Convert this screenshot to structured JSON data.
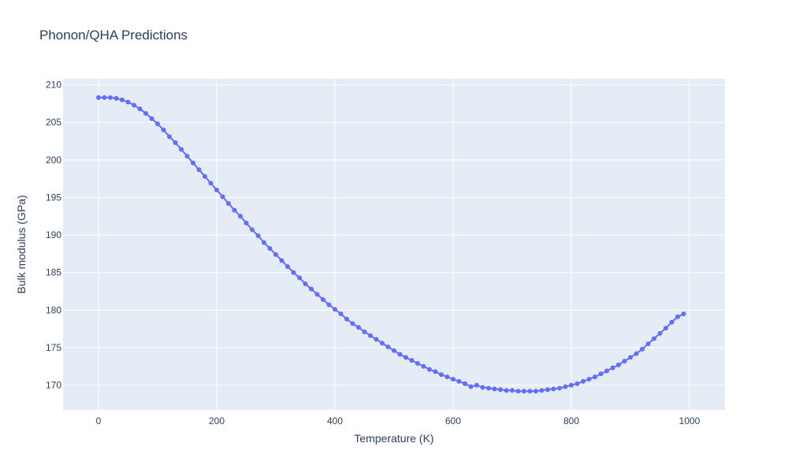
{
  "colors": {
    "plot_background": "#e5ecf6",
    "grid": "#ffffff",
    "series": "#636efa",
    "text": "#2a3f5f"
  },
  "chart_data": {
    "type": "line",
    "mode": "lines+markers",
    "title": "Phonon/QHA Predictions",
    "xlabel": "Temperature (K)",
    "ylabel": "Bulk modulus (GPa)",
    "xlim": [
      -60,
      1060
    ],
    "ylim": [
      166.7,
      210.8
    ],
    "xticks": [
      0,
      200,
      400,
      600,
      800,
      1000
    ],
    "yticks": [
      170,
      175,
      180,
      185,
      190,
      195,
      200,
      205,
      210
    ],
    "grid": true,
    "legend": "none",
    "series": [
      {
        "x": [
          0,
          10,
          20,
          30,
          40,
          50,
          60,
          70,
          80,
          90,
          100,
          110,
          120,
          130,
          140,
          150,
          160,
          170,
          180,
          190,
          200,
          210,
          220,
          230,
          240,
          250,
          260,
          270,
          280,
          290,
          300,
          310,
          320,
          330,
          340,
          350,
          360,
          370,
          380,
          390,
          400,
          410,
          420,
          430,
          440,
          450,
          460,
          470,
          480,
          490,
          500,
          510,
          520,
          530,
          540,
          550,
          560,
          570,
          580,
          590,
          600,
          610,
          620,
          630,
          640,
          650,
          660,
          670,
          680,
          690,
          700,
          710,
          720,
          730,
          740,
          750,
          760,
          770,
          780,
          790,
          800,
          810,
          820,
          830,
          840,
          850,
          860,
          870,
          880,
          890,
          900,
          910,
          920,
          930,
          940,
          950,
          960,
          970,
          980,
          990
        ],
        "y": [
          208.3,
          208.3,
          208.3,
          208.2,
          208.0,
          207.7,
          207.3,
          206.8,
          206.2,
          205.5,
          204.8,
          204.0,
          203.1,
          202.3,
          201.4,
          200.5,
          199.6,
          198.7,
          197.8,
          196.9,
          196.0,
          195.1,
          194.2,
          193.3,
          192.5,
          191.6,
          190.7,
          189.9,
          189.0,
          188.2,
          187.4,
          186.6,
          185.8,
          185.0,
          184.3,
          183.5,
          182.8,
          182.1,
          181.4,
          180.7,
          180.1,
          179.5,
          178.8,
          178.2,
          177.7,
          177.1,
          176.6,
          176.1,
          175.6,
          175.1,
          174.6,
          174.1,
          173.7,
          173.3,
          172.9,
          172.5,
          172.1,
          171.8,
          171.4,
          171.1,
          170.8,
          170.5,
          170.2,
          169.8,
          170.0,
          169.7,
          169.6,
          169.5,
          169.4,
          169.3,
          169.3,
          169.2,
          169.2,
          169.2,
          169.2,
          169.3,
          169.4,
          169.5,
          169.6,
          169.8,
          170.0,
          170.2,
          170.5,
          170.8,
          171.1,
          171.5,
          171.9,
          172.3,
          172.7,
          173.2,
          173.7,
          174.2,
          174.8,
          175.5,
          176.2,
          176.9,
          177.6,
          178.4,
          179.1,
          179.5
        ]
      }
    ]
  }
}
